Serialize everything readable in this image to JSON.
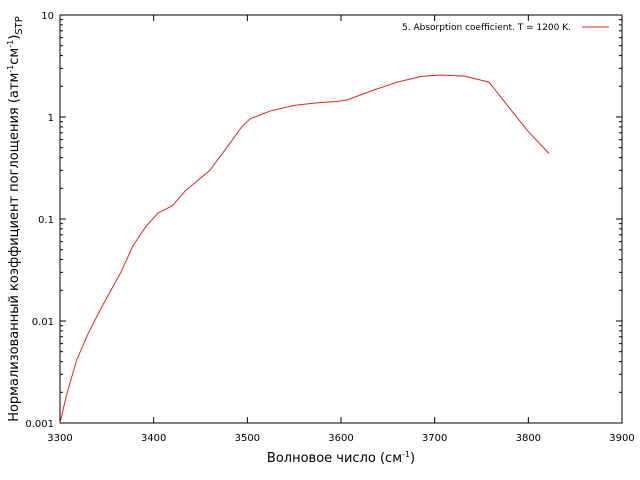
{
  "chart_data": {
    "type": "line",
    "title": "",
    "xlabel": "Волновое число (см",
    "xlabel_sup": "-1",
    "xlabel_tail": ")",
    "ylabel": "Нормализованный коэффициент поглощения (атм",
    "ylabel_sup1": "-1",
    "ylabel_mid": "см",
    "ylabel_sup2": "-1",
    "ylabel_tail": ")",
    "ylabel_sub": "STP",
    "xlim": [
      3300,
      3900
    ],
    "ylim": [
      0.001,
      10
    ],
    "yscale": "log",
    "grid": false,
    "legend_position": "top-right",
    "x_ticks": [
      3300,
      3400,
      3500,
      3600,
      3700,
      3800,
      3900
    ],
    "x_tick_labels": [
      "3300",
      "3400",
      "3500",
      "3600",
      "3700",
      "3800",
      "3900"
    ],
    "y_ticks": [
      0.001,
      0.01,
      0.1,
      1,
      10
    ],
    "y_tick_labels": [
      "0.001",
      "0.01",
      "0.1",
      "1",
      "10"
    ],
    "series": [
      {
        "name": "5. Absorption coefficient. T = 1200 K.",
        "color": "#e8241c",
        "x": [
          3300,
          3307,
          3318,
          3330,
          3345,
          3365,
          3378,
          3392,
          3405,
          3413,
          3420,
          3434,
          3460,
          3480,
          3494,
          3503,
          3525,
          3550,
          3575,
          3595,
          3607,
          3632,
          3660,
          3686,
          3706,
          3732,
          3758,
          3779,
          3800,
          3822
        ],
        "y": [
          0.001,
          0.0019,
          0.0042,
          0.0075,
          0.014,
          0.03,
          0.055,
          0.085,
          0.115,
          0.125,
          0.135,
          0.19,
          0.3,
          0.53,
          0.8,
          0.96,
          1.15,
          1.3,
          1.38,
          1.42,
          1.47,
          1.8,
          2.2,
          2.5,
          2.58,
          2.52,
          2.2,
          1.25,
          0.72,
          0.44
        ]
      }
    ]
  }
}
